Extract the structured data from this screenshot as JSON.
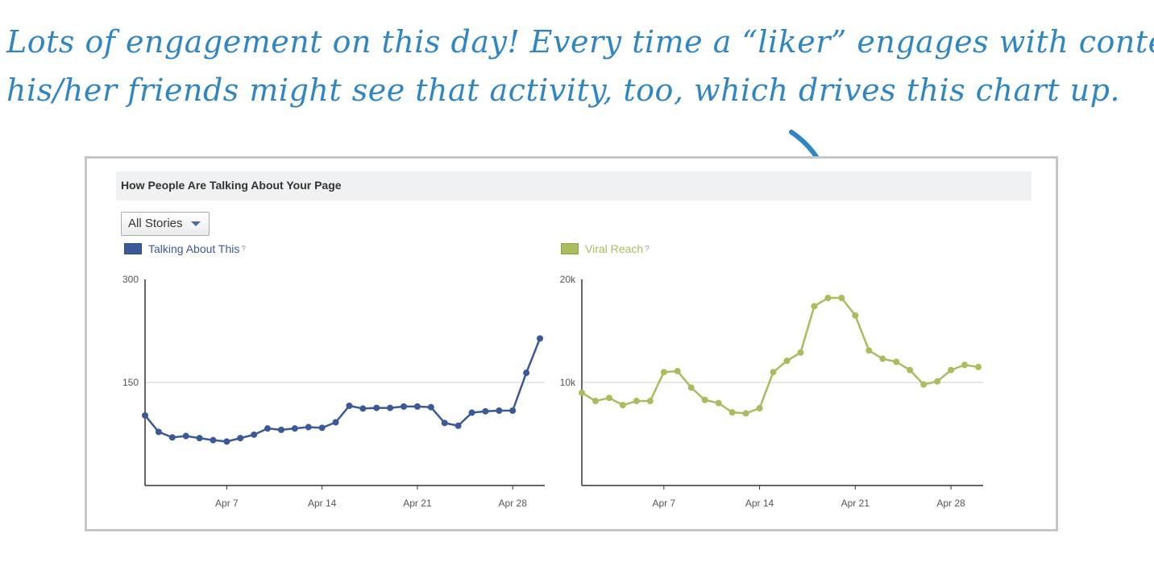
{
  "annotation": {
    "line1": "Lots of engagement on this day! Every time a “liker” engages with content,",
    "line2": "his/her friends might see that activity, too, which drives this chart up."
  },
  "panel": {
    "title": "How People Are Talking About Your Page",
    "dropdown_label": "All Stories"
  },
  "colors": {
    "annotation": "#2f86c5",
    "talking_series": "#3b5998",
    "viral_series": "#a9bd5d",
    "gridline": "#d0d0d0",
    "axis": "#333333"
  },
  "icons": {
    "dropdown": "chevron-down-icon",
    "arrow": "hand-drawn-arrow-icon"
  },
  "chart_data": [
    {
      "type": "line",
      "series": [
        {
          "name": "Talking About This",
          "help": "?"
        }
      ],
      "x_ticks": [
        "Apr 7",
        "Apr 14",
        "Apr 21",
        "Apr 28"
      ],
      "x_tick_index": [
        6,
        13,
        20,
        27
      ],
      "y_ticks": [
        "300",
        "150"
      ],
      "ylim": [
        0,
        300
      ],
      "grid": true,
      "values": [
        102,
        78,
        70,
        72,
        69,
        66,
        64,
        69,
        74,
        83,
        81,
        83,
        85,
        84,
        92,
        116,
        112,
        113,
        113,
        115,
        115,
        114,
        91,
        87,
        106,
        108,
        109,
        109,
        164,
        214
      ]
    },
    {
      "type": "line",
      "series": [
        {
          "name": "Viral Reach",
          "help": "?"
        }
      ],
      "x_ticks": [
        "Apr 7",
        "Apr 14",
        "Apr 21",
        "Apr 28"
      ],
      "x_tick_index": [
        6,
        13,
        20,
        27
      ],
      "y_ticks": [
        "20k",
        "10k"
      ],
      "ylim": [
        0,
        20000
      ],
      "grid": true,
      "values": [
        9000,
        8200,
        8500,
        7800,
        8200,
        8200,
        11000,
        11100,
        9500,
        8300,
        8000,
        7100,
        7000,
        7500,
        11000,
        12100,
        12900,
        17400,
        18200,
        18200,
        16500,
        13100,
        12300,
        12000,
        11200,
        9800,
        10100,
        11200,
        11700,
        11500
      ]
    }
  ]
}
